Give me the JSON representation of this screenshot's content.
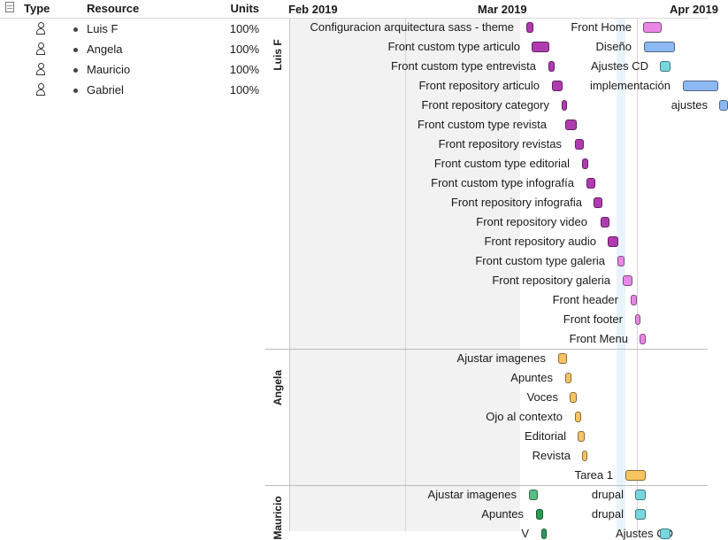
{
  "colors": {
    "purple": "#b03bb0",
    "pink": "#e987e6",
    "blue": "#8db9f2",
    "cyan": "#77d7df",
    "orange": "#f8c462",
    "green": "#58be84",
    "dkgreen": "#2a9a55"
  },
  "table": {
    "columns": {
      "type": "Type",
      "resource": "Resource",
      "units": "Units"
    },
    "resources": [
      {
        "name": "Luis F",
        "units": "100%"
      },
      {
        "name": "Angela",
        "units": "100%"
      },
      {
        "name": "Mauricio",
        "units": "100%"
      },
      {
        "name": "Gabriel",
        "units": "100%"
      }
    ]
  },
  "timeline": {
    "months": [
      "Feb 2019",
      "Mar 2019",
      "Apr 2019"
    ]
  },
  "groups": [
    {
      "name": "Luis F"
    },
    {
      "name": "Angela"
    },
    {
      "name": "Mauricio"
    }
  ],
  "tasks": [
    {
      "label": "Configuracion arquitectura sass - theme",
      "color": "purple"
    },
    {
      "label": "Front custom type articulo",
      "color": "purple"
    },
    {
      "label": "Front custom type entrevista",
      "color": "purple"
    },
    {
      "label": "Front repository articulo",
      "color": "purple"
    },
    {
      "label": "Front repository category",
      "color": "purple"
    },
    {
      "label": "Front custom type revista",
      "color": "purple"
    },
    {
      "label": "Front repository revistas",
      "color": "purple"
    },
    {
      "label": "Front custom type editorial",
      "color": "purple"
    },
    {
      "label": "Front custom type infografía",
      "color": "purple"
    },
    {
      "label": "Front repository infografia",
      "color": "purple"
    },
    {
      "label": "Front repository video",
      "color": "purple"
    },
    {
      "label": "Front repository audio",
      "color": "purple"
    },
    {
      "label": "Front custom type galeria",
      "color": "pink"
    },
    {
      "label": "Front repository galeria",
      "color": "pink"
    },
    {
      "label": "Front header",
      "color": "pink"
    },
    {
      "label": "Front footer",
      "color": "pink"
    },
    {
      "label": "Front Menu",
      "color": "pink"
    },
    {
      "label": "Front Home",
      "color": "pink"
    },
    {
      "label": "Diseño",
      "color": "blue"
    },
    {
      "label": "Ajustes CD",
      "color": "cyan"
    },
    {
      "label": "implementación",
      "color": "blue"
    },
    {
      "label": "ajustes",
      "color": "blue"
    },
    {
      "label": "Ajustar imagenes",
      "color": "orange"
    },
    {
      "label": "Apuntes",
      "color": "orange"
    },
    {
      "label": "Voces",
      "color": "orange"
    },
    {
      "label": "Ojo al contexto",
      "color": "orange"
    },
    {
      "label": "Editorial",
      "color": "orange"
    },
    {
      "label": "Revista",
      "color": "orange"
    },
    {
      "label": "Tarea 1",
      "color": "orange"
    },
    {
      "label": "Ajustar imagenes",
      "color": "green"
    },
    {
      "label": "drupal",
      "color": "cyan"
    },
    {
      "label": "Apuntes",
      "color": "dkgreen"
    },
    {
      "label": "drupal",
      "color": "cyan"
    },
    {
      "label": "V",
      "color": "dkgreen"
    },
    {
      "label": "Ajustes CD",
      "color": "cyan"
    }
  ]
}
